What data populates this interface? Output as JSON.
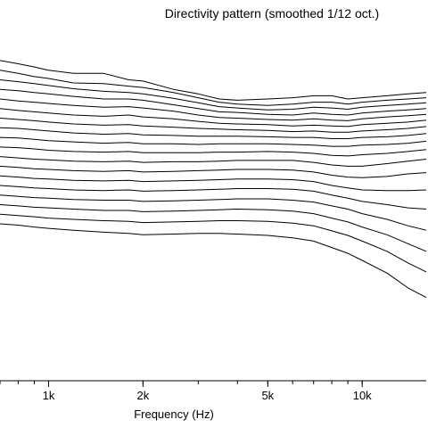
{
  "chart_data": {
    "type": "line",
    "title": "Directivity pattern (smoothed 1/12 oct.)",
    "xlabel": "Frequency (Hz)",
    "ylabel": "",
    "x_scale": "log",
    "xlim": [
      700,
      16000
    ],
    "ylim": [
      -50,
      5
    ],
    "grid": false,
    "x_ticks": [
      {
        "value": 1000,
        "label": "1k"
      },
      {
        "value": 2000,
        "label": "2k"
      },
      {
        "value": 5000,
        "label": "5k"
      },
      {
        "value": 10000,
        "label": "10k"
      }
    ],
    "x": [
      700,
      800,
      900,
      1000,
      1200,
      1500,
      1800,
      2000,
      2500,
      3000,
      3500,
      4000,
      5000,
      6000,
      7000,
      8000,
      9000,
      10000,
      12000,
      14000,
      16000
    ],
    "series": [
      {
        "values": [
          0.0,
          -0.5,
          -1.0,
          -1.5,
          -2.0,
          -2.0,
          -3.0,
          -3.2,
          -4.5,
          -5.2,
          -6.0,
          -6.2,
          -6.0,
          -5.8,
          -5.5,
          -5.5,
          -6.0,
          -5.8,
          -5.5,
          -5.2,
          -5.0
        ]
      },
      {
        "values": [
          -1.5,
          -2.0,
          -2.5,
          -2.8,
          -3.5,
          -3.6,
          -4.0,
          -4.2,
          -5.0,
          -5.8,
          -6.5,
          -6.8,
          -7.0,
          -6.8,
          -6.5,
          -6.5,
          -6.8,
          -6.5,
          -6.2,
          -6.0,
          -5.8
        ]
      },
      {
        "values": [
          -3.0,
          -3.3,
          -3.6,
          -3.9,
          -4.4,
          -4.8,
          -5.0,
          -5.2,
          -5.9,
          -6.6,
          -7.2,
          -7.4,
          -7.7,
          -7.6,
          -7.3,
          -7.4,
          -7.6,
          -7.3,
          -7.0,
          -6.8,
          -6.6
        ]
      },
      {
        "values": [
          -4.5,
          -4.7,
          -5.0,
          -5.2,
          -5.6,
          -6.0,
          -6.0,
          -6.2,
          -6.9,
          -7.5,
          -8.0,
          -8.1,
          -8.4,
          -8.5,
          -8.2,
          -8.4,
          -8.5,
          -8.2,
          -7.9,
          -7.7,
          -7.5
        ]
      },
      {
        "values": [
          -6.0,
          -6.3,
          -6.5,
          -6.7,
          -7.0,
          -7.3,
          -7.2,
          -7.4,
          -7.9,
          -8.5,
          -8.9,
          -9.0,
          -9.2,
          -9.3,
          -9.1,
          -9.3,
          -9.4,
          -9.1,
          -8.8,
          -8.6,
          -8.4
        ]
      },
      {
        "values": [
          -7.5,
          -7.8,
          -8.0,
          -8.2,
          -8.5,
          -8.7,
          -8.5,
          -8.8,
          -9.1,
          -9.5,
          -9.8,
          -9.9,
          -10.0,
          -10.2,
          -10.1,
          -10.2,
          -10.3,
          -10.0,
          -9.8,
          -9.6,
          -9.3
        ]
      },
      {
        "values": [
          -9.0,
          -9.2,
          -9.4,
          -9.6,
          -9.9,
          -10.1,
          -10.0,
          -10.2,
          -10.4,
          -10.6,
          -10.7,
          -10.8,
          -10.9,
          -11.1,
          -11.0,
          -11.2,
          -11.2,
          -11.0,
          -10.8,
          -10.6,
          -10.3
        ]
      },
      {
        "values": [
          -10.5,
          -10.6,
          -10.8,
          -11.0,
          -11.3,
          -11.5,
          -11.4,
          -11.6,
          -11.7,
          -11.8,
          -11.8,
          -11.8,
          -11.9,
          -12.0,
          -12.0,
          -12.2,
          -12.2,
          -12.0,
          -11.9,
          -11.7,
          -11.4
        ]
      },
      {
        "values": [
          -12.0,
          -12.1,
          -12.3,
          -12.5,
          -12.7,
          -12.9,
          -12.8,
          -13.0,
          -13.0,
          -13.1,
          -13.0,
          -13.0,
          -13.0,
          -13.1,
          -13.2,
          -13.4,
          -13.4,
          -13.2,
          -13.1,
          -12.9,
          -12.6
        ]
      },
      {
        "values": [
          -13.5,
          -13.6,
          -13.8,
          -14.0,
          -14.2,
          -14.3,
          -14.2,
          -14.4,
          -14.4,
          -14.4,
          -14.3,
          -14.3,
          -14.2,
          -14.3,
          -14.5,
          -14.8,
          -14.9,
          -14.7,
          -14.5,
          -14.2,
          -13.9
        ]
      },
      {
        "values": [
          -15.0,
          -15.2,
          -15.4,
          -15.5,
          -15.7,
          -15.8,
          -15.7,
          -15.9,
          -15.8,
          -15.8,
          -15.7,
          -15.6,
          -15.6,
          -15.6,
          -15.9,
          -16.3,
          -16.5,
          -16.5,
          -16.1,
          -15.7,
          -15.4
        ]
      },
      {
        "values": [
          -16.5,
          -16.7,
          -16.9,
          -17.0,
          -17.2,
          -17.3,
          -17.2,
          -17.4,
          -17.3,
          -17.2,
          -17.1,
          -17.0,
          -17.0,
          -17.1,
          -17.4,
          -17.9,
          -18.2,
          -18.3,
          -18.1,
          -17.7,
          -17.5
        ]
      },
      {
        "values": [
          -18.0,
          -18.2,
          -18.4,
          -18.5,
          -18.7,
          -18.8,
          -18.7,
          -18.9,
          -18.8,
          -18.7,
          -18.6,
          -18.5,
          -18.5,
          -18.6,
          -18.9,
          -19.5,
          -19.9,
          -20.2,
          -20.3,
          -20.3,
          -20.2
        ]
      },
      {
        "values": [
          -19.5,
          -19.7,
          -19.9,
          -20.0,
          -20.2,
          -20.3,
          -20.2,
          -20.4,
          -20.3,
          -20.2,
          -20.1,
          -20.0,
          -20.0,
          -20.1,
          -20.4,
          -21.0,
          -21.5,
          -22.0,
          -22.5,
          -23.0,
          -23.2
        ]
      },
      {
        "values": [
          -21.0,
          -21.2,
          -21.4,
          -21.5,
          -21.7,
          -21.8,
          -21.8,
          -22.0,
          -21.9,
          -21.8,
          -21.7,
          -21.6,
          -21.6,
          -21.8,
          -22.1,
          -22.7,
          -23.2,
          -23.9,
          -24.8,
          -25.8,
          -26.5
        ]
      },
      {
        "values": [
          -22.5,
          -22.7,
          -22.9,
          -23.0,
          -23.2,
          -23.4,
          -23.4,
          -23.6,
          -23.5,
          -23.4,
          -23.3,
          -23.2,
          -23.3,
          -23.5,
          -23.9,
          -24.6,
          -25.2,
          -26.0,
          -27.2,
          -28.6,
          -29.8
        ]
      },
      {
        "values": [
          -24.0,
          -24.2,
          -24.4,
          -24.6,
          -24.8,
          -25.0,
          -25.1,
          -25.3,
          -25.2,
          -25.1,
          -25.0,
          -25.0,
          -25.1,
          -25.4,
          -25.8,
          -26.6,
          -27.3,
          -28.2,
          -29.8,
          -31.6,
          -33.0
        ]
      },
      {
        "values": [
          -25.5,
          -25.7,
          -26.0,
          -26.2,
          -26.5,
          -26.8,
          -27.0,
          -27.2,
          -27.1,
          -27.0,
          -27.0,
          -27.1,
          -27.3,
          -27.7,
          -28.2,
          -29.2,
          -30.1,
          -31.2,
          -33.2,
          -35.5,
          -37.0
        ]
      }
    ]
  }
}
